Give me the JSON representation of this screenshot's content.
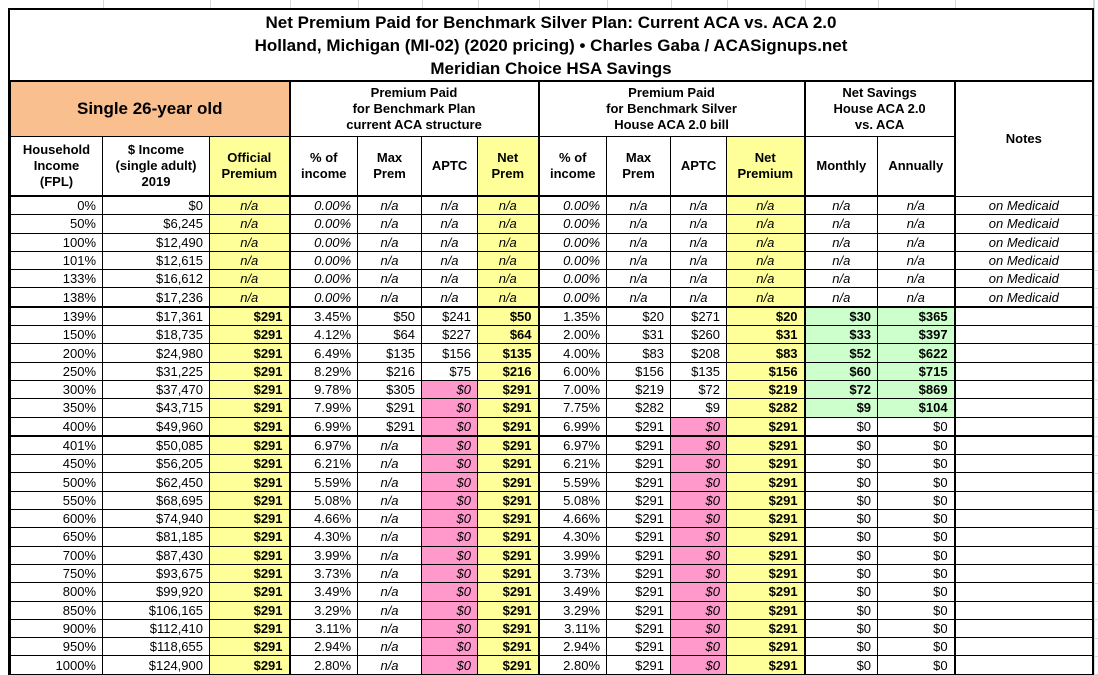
{
  "title": {
    "line1": "Net Premium Paid for Benchmark Silver Plan: Current ACA vs. ACA 2.0",
    "line2": "Holland, Michigan (MI-02) (2020 pricing) • Charles Gaba / ACASignups.net",
    "line3": "Meridian Choice HSA Savings"
  },
  "colors": {
    "orange": "#FABF8F",
    "yellow": "#FFFF99",
    "pink": "#FF99CC",
    "green": "#CCFFCC",
    "border": "#000000",
    "gridline": "#D8D8D8"
  },
  "header": {
    "subject": "Single 26-year old",
    "group_aca": "Premium Paid\nfor Benchmark Plan\ncurrent ACA structure",
    "group_aca2": "Premium Paid\nfor Benchmark Silver\nHouse ACA 2.0 bill",
    "group_savings": "Net Savings\nHouse ACA 2.0\nvs. ACA",
    "notes_label": "Notes",
    "columns": {
      "fpl": "Household\nIncome\n(FPL)",
      "income": "$ Income\n(single adult)\n2019",
      "official": "Official\nPremium",
      "aca_pct": "% of\nincome",
      "aca_max": "Max\nPrem",
      "aca_aptc": "APTC",
      "aca_net": "Net\nPrem",
      "aca2_pct": "% of\nincome",
      "aca2_max": "Max\nPrem",
      "aca2_aptc": "APTC",
      "aca2_net": "Net\nPremium",
      "monthly": "Monthly",
      "annually": "Annually"
    }
  },
  "rows": [
    {
      "kind": "medicaid",
      "fpl": "0%",
      "income": "$0",
      "official": "n/a",
      "aca": {
        "pct": "0.00%",
        "max": "n/a",
        "aptc": "n/a",
        "net": "n/a"
      },
      "aca2": {
        "pct": "0.00%",
        "max": "n/a",
        "aptc": "n/a",
        "net": "n/a"
      },
      "monthly": "n/a",
      "annually": "n/a",
      "notes": "on Medicaid"
    },
    {
      "kind": "medicaid",
      "fpl": "50%",
      "income": "$6,245",
      "official": "n/a",
      "aca": {
        "pct": "0.00%",
        "max": "n/a",
        "aptc": "n/a",
        "net": "n/a"
      },
      "aca2": {
        "pct": "0.00%",
        "max": "n/a",
        "aptc": "n/a",
        "net": "n/a"
      },
      "monthly": "n/a",
      "annually": "n/a",
      "notes": "on Medicaid"
    },
    {
      "kind": "medicaid",
      "fpl": "100%",
      "income": "$12,490",
      "official": "n/a",
      "aca": {
        "pct": "0.00%",
        "max": "n/a",
        "aptc": "n/a",
        "net": "n/a"
      },
      "aca2": {
        "pct": "0.00%",
        "max": "n/a",
        "aptc": "n/a",
        "net": "n/a"
      },
      "monthly": "n/a",
      "annually": "n/a",
      "notes": "on Medicaid"
    },
    {
      "kind": "medicaid",
      "fpl": "101%",
      "income": "$12,615",
      "official": "n/a",
      "aca": {
        "pct": "0.00%",
        "max": "n/a",
        "aptc": "n/a",
        "net": "n/a"
      },
      "aca2": {
        "pct": "0.00%",
        "max": "n/a",
        "aptc": "n/a",
        "net": "n/a"
      },
      "monthly": "n/a",
      "annually": "n/a",
      "notes": "on Medicaid"
    },
    {
      "kind": "medicaid",
      "fpl": "133%",
      "income": "$16,612",
      "official": "n/a",
      "aca": {
        "pct": "0.00%",
        "max": "n/a",
        "aptc": "n/a",
        "net": "n/a"
      },
      "aca2": {
        "pct": "0.00%",
        "max": "n/a",
        "aptc": "n/a",
        "net": "n/a"
      },
      "monthly": "n/a",
      "annually": "n/a",
      "notes": "on Medicaid"
    },
    {
      "kind": "medicaid",
      "fpl": "138%",
      "income": "$17,236",
      "official": "n/a",
      "aca": {
        "pct": "0.00%",
        "max": "n/a",
        "aptc": "n/a",
        "net": "n/a"
      },
      "aca2": {
        "pct": "0.00%",
        "max": "n/a",
        "aptc": "n/a",
        "net": "n/a"
      },
      "monthly": "n/a",
      "annually": "n/a",
      "notes": "on Medicaid"
    },
    {
      "kind": "subsidy",
      "sectionTop": true,
      "fpl": "139%",
      "income": "$17,361",
      "official": "$291",
      "aca": {
        "pct": "3.45%",
        "max": "$50",
        "aptc": "$241",
        "net": "$50"
      },
      "aca2": {
        "pct": "1.35%",
        "max": "$20",
        "aptc": "$271",
        "net": "$20"
      },
      "monthly": "$30",
      "annually": "$365",
      "notes": ""
    },
    {
      "kind": "subsidy",
      "fpl": "150%",
      "income": "$18,735",
      "official": "$291",
      "aca": {
        "pct": "4.12%",
        "max": "$64",
        "aptc": "$227",
        "net": "$64"
      },
      "aca2": {
        "pct": "2.00%",
        "max": "$31",
        "aptc": "$260",
        "net": "$31"
      },
      "monthly": "$33",
      "annually": "$397",
      "notes": ""
    },
    {
      "kind": "subsidy",
      "fpl": "200%",
      "income": "$24,980",
      "official": "$291",
      "aca": {
        "pct": "6.49%",
        "max": "$135",
        "aptc": "$156",
        "net": "$135"
      },
      "aca2": {
        "pct": "4.00%",
        "max": "$83",
        "aptc": "$208",
        "net": "$83"
      },
      "monthly": "$52",
      "annually": "$622",
      "notes": ""
    },
    {
      "kind": "subsidy",
      "fpl": "250%",
      "income": "$31,225",
      "official": "$291",
      "aca": {
        "pct": "8.29%",
        "max": "$216",
        "aptc": "$75",
        "net": "$216"
      },
      "aca2": {
        "pct": "6.00%",
        "max": "$156",
        "aptc": "$135",
        "net": "$156"
      },
      "monthly": "$60",
      "annually": "$715",
      "notes": ""
    },
    {
      "kind": "subsidy_aca0",
      "fpl": "300%",
      "income": "$37,470",
      "official": "$291",
      "aca": {
        "pct": "9.78%",
        "max": "$305",
        "aptc": "$0",
        "net": "$291"
      },
      "aca2": {
        "pct": "7.00%",
        "max": "$219",
        "aptc": "$72",
        "net": "$219"
      },
      "monthly": "$72",
      "annually": "$869",
      "notes": ""
    },
    {
      "kind": "subsidy_aca0",
      "fpl": "350%",
      "income": "$43,715",
      "official": "$291",
      "aca": {
        "pct": "7.99%",
        "max": "$291",
        "aptc": "$0",
        "net": "$291"
      },
      "aca2": {
        "pct": "7.75%",
        "max": "$282",
        "aptc": "$9",
        "net": "$282"
      },
      "monthly": "$9",
      "annually": "$104",
      "notes": ""
    },
    {
      "kind": "cliff",
      "fpl": "400%",
      "income": "$49,960",
      "official": "$291",
      "aca": {
        "pct": "6.99%",
        "max": "$291",
        "aptc": "$0",
        "net": "$291"
      },
      "aca2": {
        "pct": "6.99%",
        "max": "$291",
        "aptc": "$0",
        "net": "$291"
      },
      "monthly": "$0",
      "annually": "$0",
      "notes": ""
    },
    {
      "kind": "over",
      "sectionTop": true,
      "fpl": "401%",
      "income": "$50,085",
      "official": "$291",
      "aca": {
        "pct": "6.97%",
        "max": "n/a",
        "aptc": "$0",
        "net": "$291"
      },
      "aca2": {
        "pct": "6.97%",
        "max": "$291",
        "aptc": "$0",
        "net": "$291"
      },
      "monthly": "$0",
      "annually": "$0",
      "notes": ""
    },
    {
      "kind": "over",
      "fpl": "450%",
      "income": "$56,205",
      "official": "$291",
      "aca": {
        "pct": "6.21%",
        "max": "n/a",
        "aptc": "$0",
        "net": "$291"
      },
      "aca2": {
        "pct": "6.21%",
        "max": "$291",
        "aptc": "$0",
        "net": "$291"
      },
      "monthly": "$0",
      "annually": "$0",
      "notes": ""
    },
    {
      "kind": "over",
      "fpl": "500%",
      "income": "$62,450",
      "official": "$291",
      "aca": {
        "pct": "5.59%",
        "max": "n/a",
        "aptc": "$0",
        "net": "$291"
      },
      "aca2": {
        "pct": "5.59%",
        "max": "$291",
        "aptc": "$0",
        "net": "$291"
      },
      "monthly": "$0",
      "annually": "$0",
      "notes": ""
    },
    {
      "kind": "over",
      "fpl": "550%",
      "income": "$68,695",
      "official": "$291",
      "aca": {
        "pct": "5.08%",
        "max": "n/a",
        "aptc": "$0",
        "net": "$291"
      },
      "aca2": {
        "pct": "5.08%",
        "max": "$291",
        "aptc": "$0",
        "net": "$291"
      },
      "monthly": "$0",
      "annually": "$0",
      "notes": ""
    },
    {
      "kind": "over",
      "fpl": "600%",
      "income": "$74,940",
      "official": "$291",
      "aca": {
        "pct": "4.66%",
        "max": "n/a",
        "aptc": "$0",
        "net": "$291"
      },
      "aca2": {
        "pct": "4.66%",
        "max": "$291",
        "aptc": "$0",
        "net": "$291"
      },
      "monthly": "$0",
      "annually": "$0",
      "notes": ""
    },
    {
      "kind": "over",
      "fpl": "650%",
      "income": "$81,185",
      "official": "$291",
      "aca": {
        "pct": "4.30%",
        "max": "n/a",
        "aptc": "$0",
        "net": "$291"
      },
      "aca2": {
        "pct": "4.30%",
        "max": "$291",
        "aptc": "$0",
        "net": "$291"
      },
      "monthly": "$0",
      "annually": "$0",
      "notes": ""
    },
    {
      "kind": "over",
      "fpl": "700%",
      "income": "$87,430",
      "official": "$291",
      "aca": {
        "pct": "3.99%",
        "max": "n/a",
        "aptc": "$0",
        "net": "$291"
      },
      "aca2": {
        "pct": "3.99%",
        "max": "$291",
        "aptc": "$0",
        "net": "$291"
      },
      "monthly": "$0",
      "annually": "$0",
      "notes": ""
    },
    {
      "kind": "over",
      "fpl": "750%",
      "income": "$93,675",
      "official": "$291",
      "aca": {
        "pct": "3.73%",
        "max": "n/a",
        "aptc": "$0",
        "net": "$291"
      },
      "aca2": {
        "pct": "3.73%",
        "max": "$291",
        "aptc": "$0",
        "net": "$291"
      },
      "monthly": "$0",
      "annually": "$0",
      "notes": ""
    },
    {
      "kind": "over",
      "fpl": "800%",
      "income": "$99,920",
      "official": "$291",
      "aca": {
        "pct": "3.49%",
        "max": "n/a",
        "aptc": "$0",
        "net": "$291"
      },
      "aca2": {
        "pct": "3.49%",
        "max": "$291",
        "aptc": "$0",
        "net": "$291"
      },
      "monthly": "$0",
      "annually": "$0",
      "notes": ""
    },
    {
      "kind": "over",
      "fpl": "850%",
      "income": "$106,165",
      "official": "$291",
      "aca": {
        "pct": "3.29%",
        "max": "n/a",
        "aptc": "$0",
        "net": "$291"
      },
      "aca2": {
        "pct": "3.29%",
        "max": "$291",
        "aptc": "$0",
        "net": "$291"
      },
      "monthly": "$0",
      "annually": "$0",
      "notes": ""
    },
    {
      "kind": "over",
      "fpl": "900%",
      "income": "$112,410",
      "official": "$291",
      "aca": {
        "pct": "3.11%",
        "max": "n/a",
        "aptc": "$0",
        "net": "$291"
      },
      "aca2": {
        "pct": "3.11%",
        "max": "$291",
        "aptc": "$0",
        "net": "$291"
      },
      "monthly": "$0",
      "annually": "$0",
      "notes": ""
    },
    {
      "kind": "over",
      "fpl": "950%",
      "income": "$118,655",
      "official": "$291",
      "aca": {
        "pct": "2.94%",
        "max": "n/a",
        "aptc": "$0",
        "net": "$291"
      },
      "aca2": {
        "pct": "2.94%",
        "max": "$291",
        "aptc": "$0",
        "net": "$291"
      },
      "monthly": "$0",
      "annually": "$0",
      "notes": ""
    },
    {
      "kind": "over",
      "fpl": "1000%",
      "income": "$124,900",
      "official": "$291",
      "aca": {
        "pct": "2.80%",
        "max": "n/a",
        "aptc": "$0",
        "net": "$291"
      },
      "aca2": {
        "pct": "2.80%",
        "max": "$291",
        "aptc": "$0",
        "net": "$291"
      },
      "monthly": "$0",
      "annually": "$0",
      "notes": ""
    }
  ]
}
